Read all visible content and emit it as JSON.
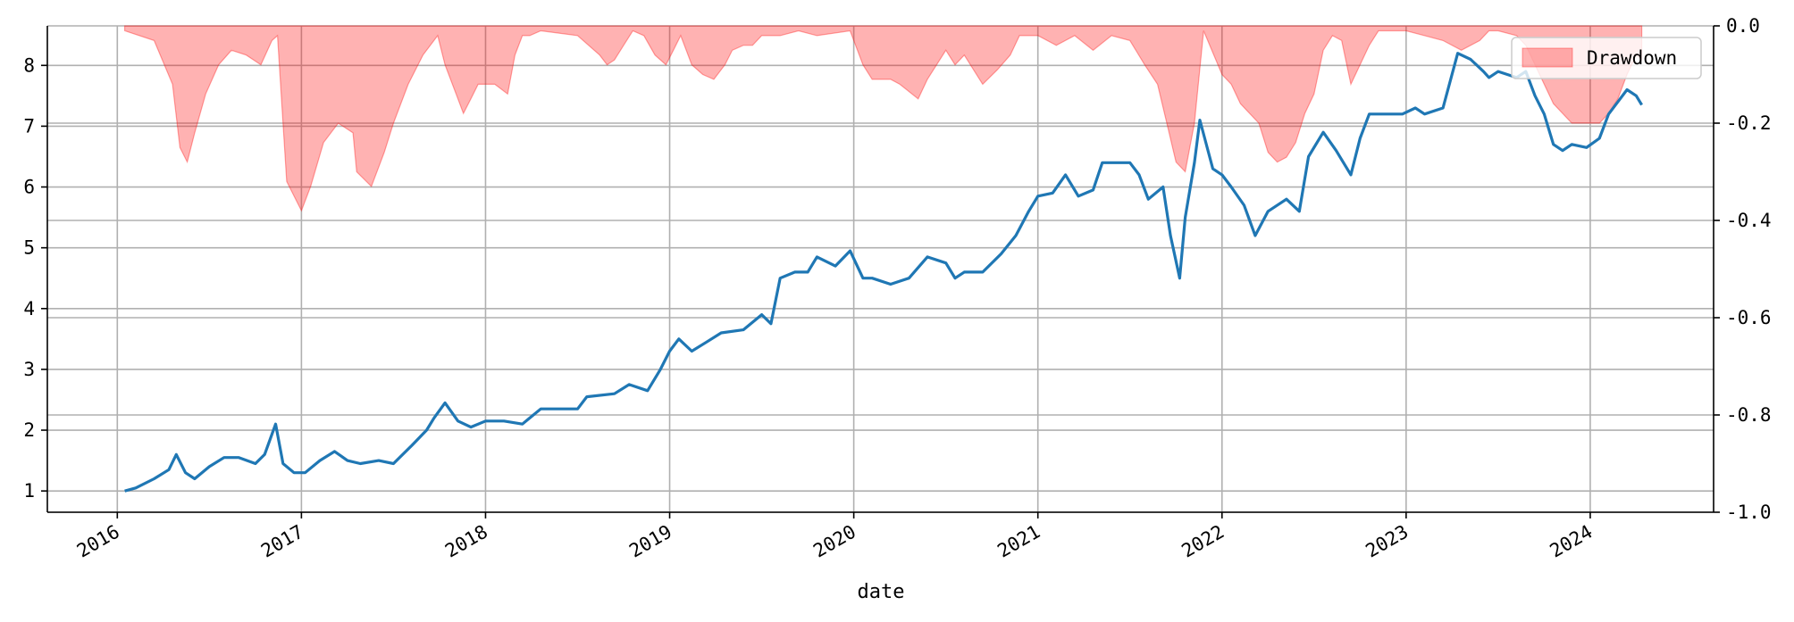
{
  "chart_data": {
    "type": "line",
    "title": "",
    "xlabel": "date",
    "ylabel": "",
    "y2label": "",
    "grid": true,
    "legend": {
      "position": "upper-right",
      "entries": [
        "Drawdown"
      ]
    },
    "x_ticks": [
      "2016",
      "2017",
      "2018",
      "2019",
      "2020",
      "2021",
      "2022",
      "2023",
      "2024"
    ],
    "y_ticks": [
      "1",
      "2",
      "3",
      "4",
      "5",
      "6",
      "7",
      "8"
    ],
    "y2_ticks": [
      "0.0",
      "-0.2",
      "-0.4",
      "-0.6",
      "-0.8",
      "-1.0"
    ],
    "xlim": [
      2015.62,
      2024.67
    ],
    "ylim": [
      0.65,
      8.65
    ],
    "y2lim": [
      -1.0,
      0.0
    ],
    "colors": {
      "equity": "#1f77b4",
      "drawdown_fill": "#ff0000",
      "drawdown_alpha": 0.3
    },
    "series": [
      {
        "type": "line",
        "axis": "left",
        "x": [
          2016.04,
          2016.1,
          2016.2,
          2016.28,
          2016.32,
          2016.37,
          2016.42,
          2016.5,
          2016.58,
          2016.66,
          2016.75,
          2016.8,
          2016.86,
          2016.9,
          2016.96,
          2017.02,
          2017.1,
          2017.18,
          2017.25,
          2017.32,
          2017.42,
          2017.5,
          2017.6,
          2017.68,
          2017.72,
          2017.78,
          2017.85,
          2017.92,
          2018.0,
          2018.1,
          2018.2,
          2018.24,
          2018.3,
          2018.5,
          2018.55,
          2018.7,
          2018.78,
          2018.88,
          2018.95,
          2019.0,
          2019.05,
          2019.12,
          2019.2,
          2019.28,
          2019.4,
          2019.5,
          2019.55,
          2019.6,
          2019.68,
          2019.75,
          2019.8,
          2019.9,
          2019.98,
          2020.05,
          2020.1,
          2020.2,
          2020.3,
          2020.4,
          2020.5,
          2020.55,
          2020.6,
          2020.7,
          2020.8,
          2020.88,
          2020.95,
          2021.0,
          2021.08,
          2021.15,
          2021.22,
          2021.3,
          2021.35,
          2021.5,
          2021.55,
          2021.6,
          2021.68,
          2021.72,
          2021.77,
          2021.8,
          2021.85,
          2021.88,
          2021.95,
          2022.0,
          2022.05,
          2022.12,
          2022.18,
          2022.25,
          2022.35,
          2022.42,
          2022.47,
          2022.55,
          2022.62,
          2022.7,
          2022.75,
          2022.8,
          2022.9,
          2022.98,
          2023.05,
          2023.1,
          2023.2,
          2023.28,
          2023.35,
          2023.42,
          2023.45,
          2023.5,
          2023.6,
          2023.65,
          2023.7,
          2023.75,
          2023.8,
          2023.85,
          2023.9,
          2023.98,
          2024.05,
          2024.1,
          2024.15,
          2024.2,
          2024.25,
          2024.28
        ],
        "values": [
          1.0,
          1.05,
          1.2,
          1.35,
          1.6,
          1.3,
          1.2,
          1.4,
          1.55,
          1.55,
          1.45,
          1.6,
          2.1,
          1.45,
          1.3,
          1.3,
          1.5,
          1.65,
          1.5,
          1.45,
          1.5,
          1.45,
          1.75,
          2.0,
          2.2,
          2.45,
          2.15,
          2.05,
          2.15,
          2.15,
          2.1,
          2.2,
          2.35,
          2.35,
          2.55,
          2.6,
          2.75,
          2.65,
          3.0,
          3.3,
          3.5,
          3.3,
          3.45,
          3.6,
          3.65,
          3.9,
          3.75,
          4.5,
          4.6,
          4.6,
          4.85,
          4.7,
          4.95,
          4.5,
          4.5,
          4.4,
          4.5,
          4.85,
          4.75,
          4.5,
          4.6,
          4.6,
          4.9,
          5.2,
          5.6,
          5.85,
          5.9,
          6.2,
          5.85,
          5.95,
          6.4,
          6.4,
          6.2,
          5.8,
          6.0,
          5.2,
          4.5,
          5.5,
          6.4,
          7.1,
          6.3,
          6.2,
          6.0,
          5.7,
          5.2,
          5.6,
          5.8,
          5.6,
          6.5,
          6.9,
          6.6,
          6.2,
          6.8,
          7.2,
          7.2,
          7.2,
          7.3,
          7.2,
          7.3,
          8.2,
          8.1,
          7.9,
          7.8,
          7.9,
          7.8,
          7.9,
          7.5,
          7.2,
          6.7,
          6.6,
          6.7,
          6.65,
          6.8,
          7.2,
          7.4,
          7.6,
          7.5,
          7.35
        ]
      },
      {
        "type": "area",
        "name": "Drawdown",
        "axis": "right",
        "x": [
          2016.04,
          2016.2,
          2016.3,
          2016.34,
          2016.38,
          2016.42,
          2016.48,
          2016.55,
          2016.62,
          2016.7,
          2016.78,
          2016.84,
          2016.87,
          2016.92,
          2017.0,
          2017.05,
          2017.12,
          2017.2,
          2017.28,
          2017.3,
          2017.38,
          2017.45,
          2017.5,
          2017.58,
          2017.66,
          2017.74,
          2017.78,
          2017.84,
          2017.88,
          2017.92,
          2017.96,
          2018.05,
          2018.12,
          2018.16,
          2018.2,
          2018.24,
          2018.3,
          2018.5,
          2018.62,
          2018.66,
          2018.7,
          2018.75,
          2018.8,
          2018.86,
          2018.92,
          2018.98,
          2019.02,
          2019.06,
          2019.12,
          2019.18,
          2019.24,
          2019.3,
          2019.34,
          2019.4,
          2019.45,
          2019.5,
          2019.6,
          2019.7,
          2019.8,
          2019.98,
          2020.05,
          2020.1,
          2020.2,
          2020.25,
          2020.35,
          2020.4,
          2020.5,
          2020.55,
          2020.6,
          2020.7,
          2020.78,
          2020.85,
          2020.9,
          2021.0,
          2021.1,
          2021.2,
          2021.3,
          2021.4,
          2021.5,
          2021.58,
          2021.65,
          2021.7,
          2021.75,
          2021.8,
          2021.85,
          2021.9,
          2022.0,
          2022.05,
          2022.1,
          2022.15,
          2022.2,
          2022.25,
          2022.3,
          2022.35,
          2022.4,
          2022.45,
          2022.5,
          2022.55,
          2022.6,
          2022.65,
          2022.7,
          2022.75,
          2022.8,
          2022.85,
          2022.9,
          2022.95,
          2023.0,
          2023.1,
          2023.2,
          2023.3,
          2023.4,
          2023.45,
          2023.5,
          2023.6,
          2023.65,
          2023.7,
          2023.75,
          2023.8,
          2023.85,
          2023.9,
          2023.95,
          2024.0,
          2024.05,
          2024.1,
          2024.15,
          2024.2,
          2024.25,
          2024.28
        ],
        "values": [
          -0.01,
          -0.03,
          -0.12,
          -0.25,
          -0.28,
          -0.22,
          -0.14,
          -0.08,
          -0.05,
          -0.06,
          -0.08,
          -0.03,
          -0.02,
          -0.32,
          -0.38,
          -0.33,
          -0.24,
          -0.2,
          -0.22,
          -0.3,
          -0.33,
          -0.26,
          -0.2,
          -0.12,
          -0.06,
          -0.02,
          -0.08,
          -0.14,
          -0.18,
          -0.15,
          -0.12,
          -0.12,
          -0.14,
          -0.06,
          -0.02,
          -0.02,
          -0.01,
          -0.02,
          -0.06,
          -0.08,
          -0.07,
          -0.04,
          -0.01,
          -0.02,
          -0.06,
          -0.08,
          -0.05,
          -0.02,
          -0.08,
          -0.1,
          -0.11,
          -0.08,
          -0.05,
          -0.04,
          -0.04,
          -0.02,
          -0.02,
          -0.01,
          -0.02,
          -0.01,
          -0.08,
          -0.11,
          -0.11,
          -0.12,
          -0.15,
          -0.11,
          -0.05,
          -0.08,
          -0.06,
          -0.12,
          -0.09,
          -0.06,
          -0.02,
          -0.02,
          -0.04,
          -0.02,
          -0.05,
          -0.02,
          -0.03,
          -0.08,
          -0.12,
          -0.2,
          -0.28,
          -0.3,
          -0.2,
          -0.01,
          -0.1,
          -0.12,
          -0.16,
          -0.18,
          -0.2,
          -0.26,
          -0.28,
          -0.27,
          -0.24,
          -0.18,
          -0.14,
          -0.05,
          -0.02,
          -0.03,
          -0.12,
          -0.08,
          -0.04,
          -0.01,
          -0.01,
          -0.01,
          -0.01,
          -0.02,
          -0.03,
          -0.05,
          -0.03,
          -0.01,
          -0.01,
          -0.02,
          -0.04,
          -0.08,
          -0.12,
          -0.16,
          -0.18,
          -0.2,
          -0.2,
          -0.2,
          -0.2,
          -0.18,
          -0.15,
          -0.1,
          -0.06,
          -0.07
        ]
      }
    ]
  }
}
